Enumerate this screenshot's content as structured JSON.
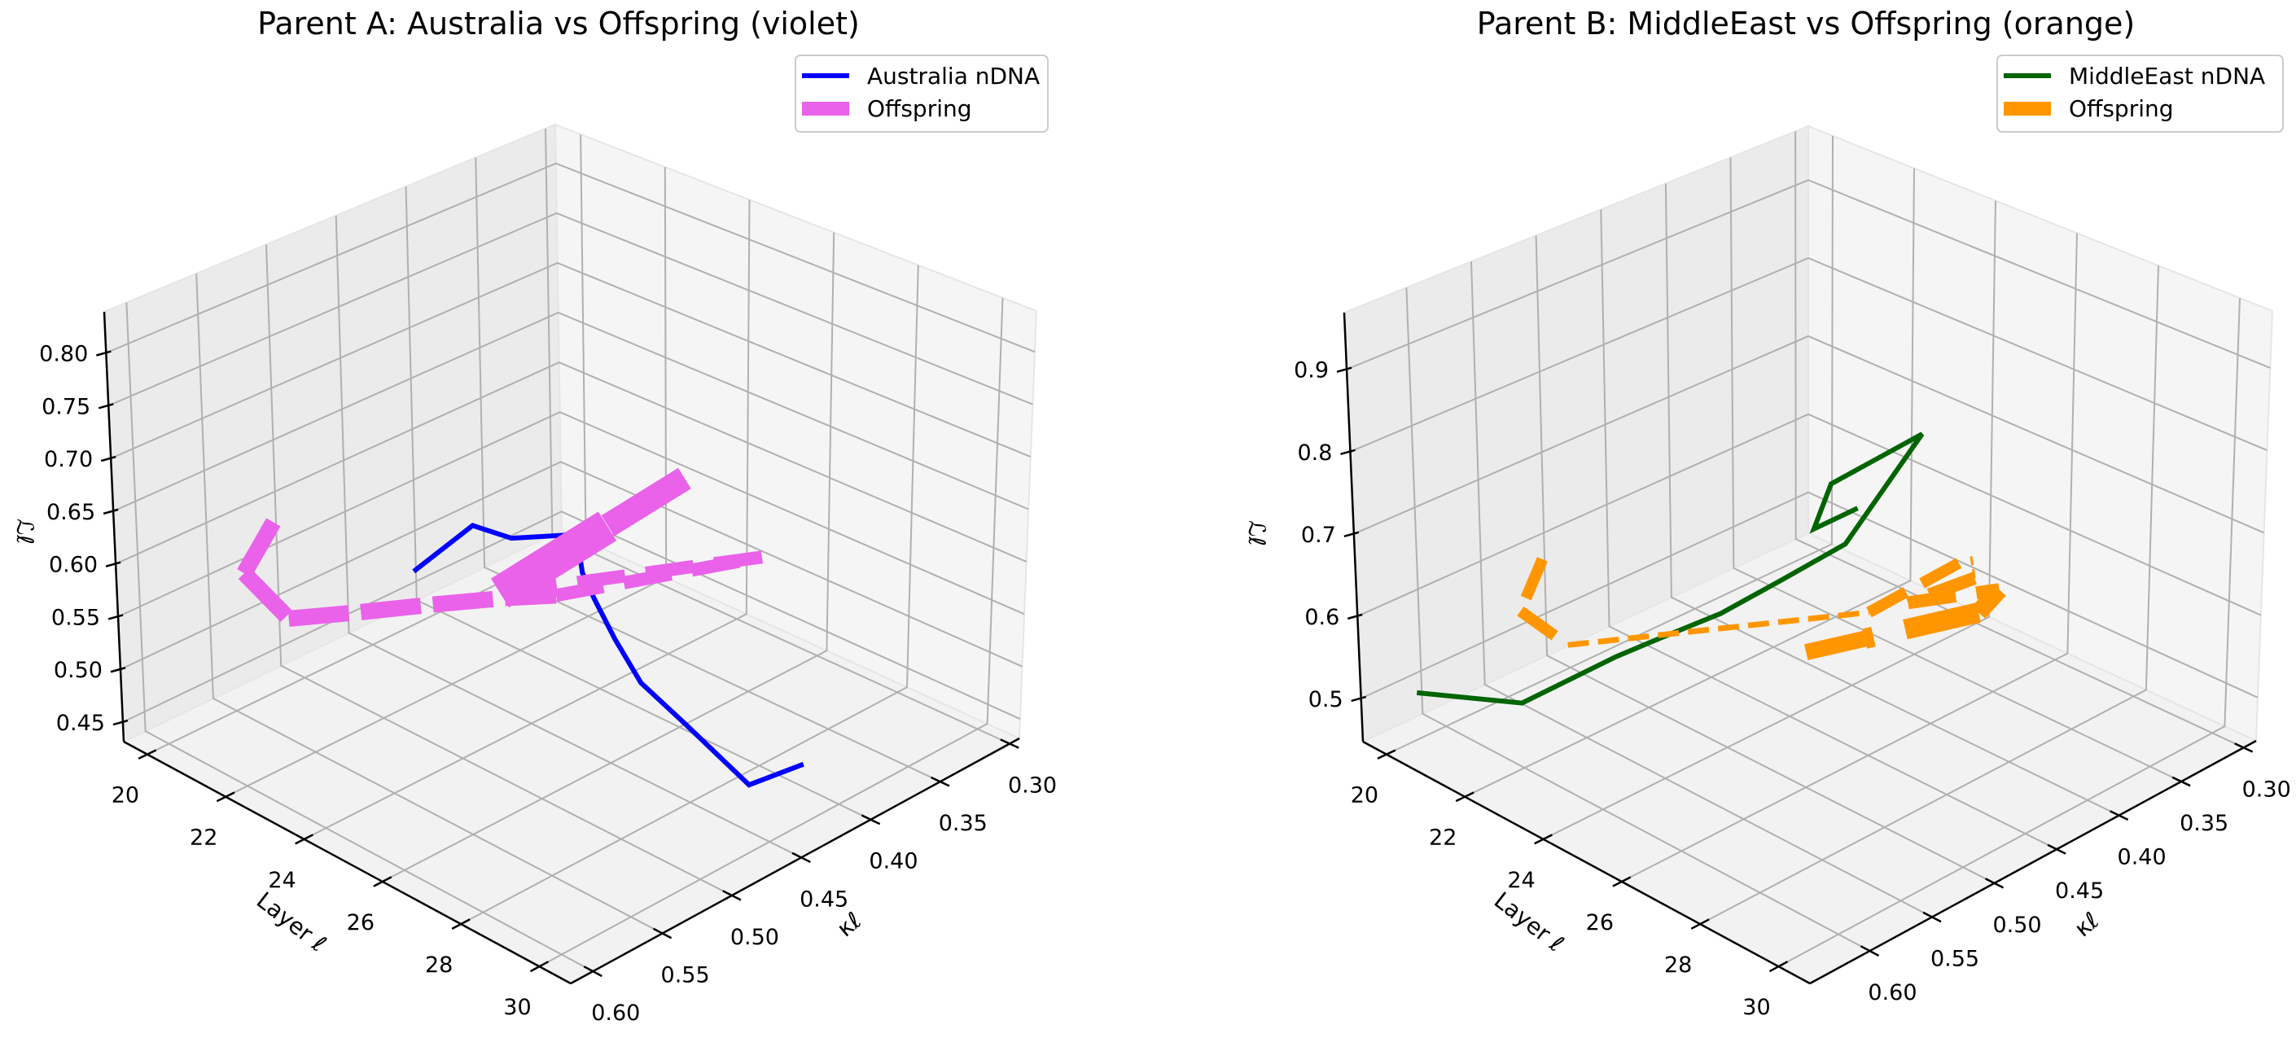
{
  "chart_data": [
    {
      "type": "line3d",
      "title": "Parent A: Australia  vs Offspring (violet)",
      "xlabel": "Layer ℓ",
      "ylabel": "κℓ",
      "zlabel": "ℒℓ",
      "xlim": [
        19.4,
        30.8
      ],
      "ylim": [
        0.293,
        0.616
      ],
      "zlim": [
        0.4315,
        0.839
      ],
      "xticks": [
        20,
        22,
        24,
        26,
        28,
        30
      ],
      "xtick_labels": [
        "20",
        "22",
        "24",
        "26",
        "28",
        "30"
      ],
      "yticks": [
        0.3,
        0.35,
        0.4,
        0.45,
        0.5,
        0.55,
        0.6
      ],
      "ytick_labels": [
        "0.30",
        "0.35",
        "0.40",
        "0.45",
        "0.50",
        "0.55",
        "0.60"
      ],
      "zticks": [
        0.45,
        0.5,
        0.55,
        0.6,
        0.65,
        0.7,
        0.75,
        0.8
      ],
      "ztick_labels": [
        "0.45",
        "0.50",
        "0.55",
        "0.60",
        "0.65",
        "0.70",
        "0.75",
        "0.80"
      ],
      "grid": true,
      "legend_position": "top-right",
      "series": [
        {
          "name": "Australia nDNA",
          "color": "#0000ff",
          "linestyle": "solid",
          "x": [
            20,
            21,
            22,
            23,
            24,
            25,
            26,
            27,
            28,
            29,
            30
          ],
          "y": [
            0.423,
            0.407,
            0.407,
            0.388,
            0.412,
            0.431,
            0.445,
            0.455,
            0.452,
            0.436,
            0.424
          ],
          "z": [
            0.466,
            0.518,
            0.526,
            0.536,
            0.537,
            0.545,
            0.538,
            0.524,
            0.503,
            0.454,
            0.485
          ]
        },
        {
          "name": "Offspring",
          "color": "#ea62e9",
          "linestyle": "dashed",
          "x": [
            20,
            21,
            22,
            23,
            24,
            25,
            26,
            27,
            28,
            29,
            30
          ],
          "y": [
            0.52,
            0.569,
            0.566,
            0.542,
            0.518,
            0.494,
            0.485,
            0.366,
            0.578,
            0.527,
            0.482
          ],
          "z": [
            0.582,
            0.589,
            0.564,
            0.573,
            0.583,
            0.592,
            0.608,
            0.579,
            0.717,
            0.764,
            0.81
          ]
        }
      ]
    },
    {
      "type": "line3d",
      "title": "Parent B: MiddleEast  vs Offspring (orange)",
      "xlabel": "Layer ℓ",
      "ylabel": "κℓ",
      "zlabel": "ℒℓ",
      "xlim": [
        19.4,
        30.8
      ],
      "ylim": [
        0.29,
        0.648
      ],
      "zlim": [
        0.4475,
        0.969
      ],
      "xticks": [
        20,
        22,
        24,
        26,
        28,
        30
      ],
      "xtick_labels": [
        "20",
        "22",
        "24",
        "26",
        "28",
        "30"
      ],
      "yticks": [
        0.3,
        0.35,
        0.4,
        0.45,
        0.5,
        0.55,
        0.6
      ],
      "ytick_labels": [
        "0.30",
        "0.35",
        "0.40",
        "0.45",
        "0.50",
        "0.55",
        "0.60"
      ],
      "zticks": [
        0.5,
        0.6,
        0.7,
        0.8,
        0.9
      ],
      "ztick_labels": [
        "0.5",
        "0.6",
        "0.7",
        "0.8",
        "0.9"
      ],
      "grid": true,
      "legend_position": "top-right",
      "series": [
        {
          "name": "MiddleEast nDNA",
          "color": "#006400",
          "linestyle": "solid",
          "x": [
            20,
            21,
            22,
            23,
            24,
            25,
            26,
            27,
            28,
            29,
            30
          ],
          "y": [
            0.622,
            0.57,
            0.525,
            0.519,
            0.501,
            0.481,
            0.461,
            0.427,
            0.53,
            0.575,
            0.57
          ],
          "z": [
            0.5,
            0.471,
            0.515,
            0.558,
            0.598,
            0.648,
            0.699,
            0.828,
            0.877,
            0.885,
            0.931
          ]
        },
        {
          "name": "Offspring",
          "color": "#ff9600",
          "linestyle": "dashed",
          "x": [
            20,
            21,
            22,
            23,
            24,
            25,
            26,
            27,
            28,
            29,
            30
          ],
          "y": [
            0.519,
            0.568,
            0.562,
            0.355,
            0.303,
            0.331,
            0.414,
            0.372,
            0.419,
            0.539,
            0.635
          ],
          "z": [
            0.576,
            0.579,
            0.559,
            0.456,
            0.506,
            0.528,
            0.591,
            0.598,
            0.634,
            0.725,
            0.805
          ]
        }
      ]
    }
  ]
}
